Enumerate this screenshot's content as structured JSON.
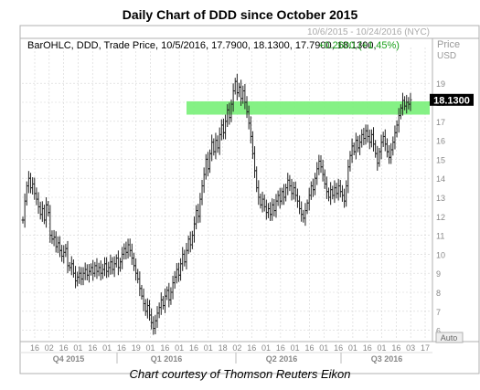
{
  "title": "Daily Chart of DDD since October 2015",
  "caption": "Chart courtesy of Thomson Reuters Eikon",
  "header": {
    "symbol_line": "BarOHLC, DDD, Trade Price, 10/5/2016, 17.7900, 18.1300, 17.7900, 18.1300,",
    "change": "+0.2600,",
    "change_pct": "(+1.45%)",
    "range": "10/6/2015 - 10/24/2016 (NYC)",
    "unit_line1": "Price",
    "unit_line2": "USD",
    "auto_label": "Auto"
  },
  "colors": {
    "bars": "#222222",
    "band": "#7ef07e",
    "change": "#1aa01a",
    "last_price_bg": "#000000",
    "grid": "#d4d4d4"
  },
  "chart_data": {
    "type": "ohlc",
    "title": "Daily Chart of DDD since October 2015",
    "ylabel": "Price USD",
    "ylim": [
      5.5,
      20.5
    ],
    "y_ticks": [
      6,
      7,
      8,
      9,
      10,
      11,
      12,
      13,
      14,
      15,
      16,
      17,
      18,
      19
    ],
    "x_ticks": [
      "16",
      "02",
      "16",
      "01",
      "16",
      "01",
      "16",
      "19",
      "01",
      "16",
      "01",
      "16",
      "01",
      "18",
      "02",
      "16",
      "01",
      "16",
      "01",
      "16",
      "01",
      "16",
      "01",
      "16",
      "01",
      "16",
      "03",
      "17"
    ],
    "quarters": [
      "Q4 2015",
      "Q1 2016",
      "Q2 2016",
      "Q3 2016"
    ],
    "last_price": "18.1300",
    "resistance_band": [
      17.35,
      18.05
    ],
    "grid": true,
    "closes": [
      11.8,
      12.8,
      13.6,
      14.0,
      13.5,
      13.7,
      13.2,
      12.9,
      12.5,
      12.1,
      12.4,
      11.8,
      12.6,
      12.2,
      11.0,
      10.8,
      10.9,
      10.4,
      10.6,
      10.2,
      9.9,
      10.1,
      10.3,
      9.4,
      9.3,
      9.5,
      9.0,
      8.6,
      8.8,
      9.0,
      8.7,
      9.0,
      9.2,
      8.9,
      9.1,
      9.3,
      9.0,
      9.4,
      9.1,
      9.3,
      9.0,
      9.2,
      9.5,
      9.1,
      9.3,
      9.6,
      9.2,
      9.5,
      9.8,
      9.3,
      9.6,
      10.0,
      10.3,
      10.1,
      10.5,
      10.2,
      9.8,
      9.4,
      9.0,
      8.7,
      8.2,
      7.8,
      7.4,
      7.0,
      7.3,
      6.8,
      6.4,
      6.1,
      6.5,
      6.9,
      7.2,
      7.6,
      7.3,
      7.8,
      8.1,
      7.6,
      8.0,
      8.5,
      8.8,
      9.2,
      8.9,
      9.5,
      10.0,
      9.6,
      10.2,
      10.8,
      10.5,
      11.0,
      11.6,
      12.3,
      12.0,
      12.9,
      13.6,
      14.2,
      15.0,
      14.5,
      15.3,
      15.9,
      15.4,
      16.0,
      15.6,
      16.3,
      16.8,
      16.4,
      17.0,
      17.6,
      17.2,
      17.9,
      18.6,
      19.1,
      18.5,
      18.8,
      18.2,
      18.6,
      18.0,
      17.5,
      16.9,
      16.2,
      15.3,
      14.4,
      13.5,
      13.0,
      12.6,
      12.9,
      12.5,
      12.2,
      12.4,
      12.1,
      12.6,
      12.3,
      12.8,
      13.1,
      12.8,
      13.3,
      13.0,
      13.5,
      13.9,
      13.6,
      13.2,
      13.5,
      13.1,
      12.8,
      12.4,
      12.1,
      11.9,
      12.3,
      12.7,
      13.1,
      13.6,
      13.4,
      14.0,
      14.5,
      14.9,
      14.6,
      14.2,
      13.7,
      13.3,
      13.0,
      13.4,
      13.1,
      13.5,
      13.2,
      13.6,
      13.3,
      13.1,
      12.8,
      13.6,
      14.6,
      15.2,
      15.7,
      15.4,
      16.0,
      15.6,
      15.9,
      16.3,
      16.1,
      16.5,
      16.2,
      15.9,
      16.3,
      15.8,
      15.3,
      14.8,
      15.4,
      15.9,
      16.2,
      15.8,
      15.4,
      15.1,
      15.5,
      15.9,
      16.4,
      16.8,
      17.3,
      17.7,
      18.1,
      17.8,
      18.0,
      17.9,
      18.13
    ]
  }
}
